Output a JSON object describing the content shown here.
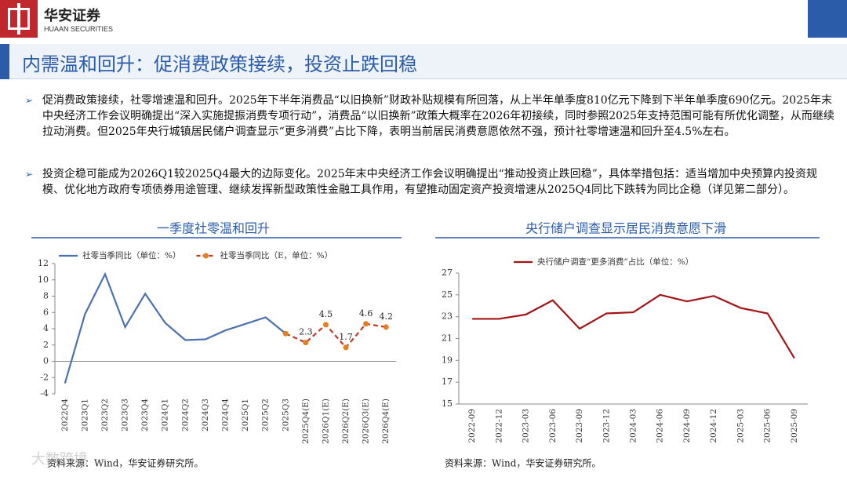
{
  "header": {
    "brand": "华安证券",
    "brand_en": "HUAAN SECURITIES",
    "title": "内需温和回升：促消费政策接续，投资止跌回稳"
  },
  "bullets": [
    "促消费政策接续，社零增速温和回升。2025年下半年消费品“以旧换新”财政补贴规模有所回落，从上半年单季度810亿元下降到下半年单季度690亿元。2025年末中央经济工作会议明确提出“深入实施提振消费专项行动”，消费品“以旧换新”政策大概率在2026年初接续，同时参照2025年支持范围可能有所优化调整，从而继续拉动消费。但2025年央行城镇居民储户调查显示“更多消费”占比下降，表明当前居民消费意愿依然不强，预计社零增速温和回升至4.5%左右。",
    "投资企稳可能成为2026Q1较2025Q4最大的边际变化。2025年末中央经济工作会议明确提出“推动投资止跌回稳”，具体举措包括：适当增加中央预算内投资规模、优化地方政府专项债券用途管理、继续发挥新型政策性金融工具作用，有望推动固定资产投资增速从2025Q4同比下跌转为同比企稳（详见第二部分）。"
  ],
  "chart_data": [
    {
      "type": "line",
      "title": "一季度社零温和回升",
      "source": "资料来源：Wind，华安证券研究所。",
      "categories": [
        "2022Q4",
        "2023Q1",
        "2023Q2",
        "2023Q3",
        "2023Q4",
        "2024Q1",
        "2024Q2",
        "2024Q3",
        "2024Q4",
        "2025Q1",
        "2025Q2",
        "2025Q3",
        "2025Q4(E)",
        "2026Q1(E)",
        "2026Q2(E)",
        "2026Q3(E)",
        "2026Q4(E)"
      ],
      "series": [
        {
          "name": "社零当季同比（单位：%）",
          "color": "#4a72b0",
          "dashed": false,
          "marker": false,
          "values": [
            -2.7,
            5.8,
            10.7,
            4.2,
            8.3,
            4.7,
            2.6,
            2.7,
            3.8,
            4.6,
            5.4,
            3.4,
            null,
            null,
            null,
            null,
            null
          ]
        },
        {
          "name": "社零当季同比（E，单位：%）",
          "color": "#c0392b",
          "dashed": true,
          "marker": true,
          "values": [
            null,
            null,
            null,
            null,
            null,
            null,
            null,
            null,
            null,
            null,
            null,
            3.4,
            2.3,
            4.5,
            1.7,
            4.6,
            4.2
          ]
        }
      ],
      "ylim": [
        -4,
        12
      ],
      "yticks": [
        -4,
        -2,
        0,
        2,
        4,
        6,
        8,
        10,
        12
      ],
      "grid": false
    },
    {
      "type": "line",
      "title": "央行储户调查显示居民消费意愿下滑",
      "source": "资料来源：Wind，华安证券研究所。",
      "categories": [
        "2022-09",
        "2022-12",
        "2023-03",
        "2023-06",
        "2023-09",
        "2023-12",
        "2024-03",
        "2024-06",
        "2024-09",
        "2024-12",
        "2025-03",
        "2025-06",
        "2025-09"
      ],
      "series": [
        {
          "name": "央行储户调查“更多消费”占比（单位：%）",
          "color": "#a31515",
          "dashed": false,
          "marker": false,
          "values": [
            22.8,
            22.8,
            23.2,
            24.5,
            21.9,
            23.3,
            23.4,
            25.0,
            24.4,
            24.9,
            23.8,
            23.3,
            19.2
          ]
        }
      ],
      "ylim": [
        15,
        27
      ],
      "yticks": [
        15,
        17,
        19,
        21,
        23,
        25,
        27
      ],
      "grid": false
    }
  ],
  "watermark": "大数跨境"
}
